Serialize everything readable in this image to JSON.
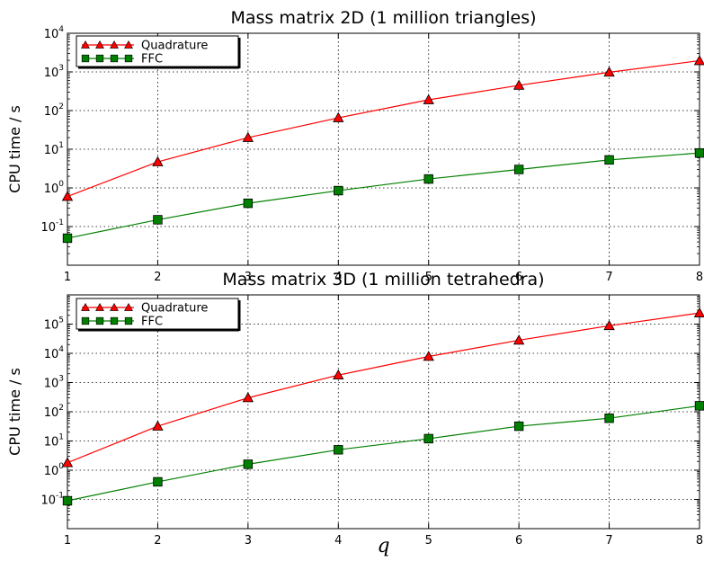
{
  "chart_data": [
    {
      "type": "line",
      "title": "Mass matrix 2D (1 million triangles)",
      "xlabel": "",
      "ylabel": "CPU time / s",
      "yscale": "log",
      "x": [
        1,
        2,
        3,
        4,
        5,
        6,
        7,
        8
      ],
      "xlim": [
        1,
        8
      ],
      "ylim": [
        0.01,
        10000
      ],
      "grid": true,
      "legend_position": "upper-left",
      "x_ticks": [
        "1",
        "2",
        "3",
        "4",
        "5",
        "6",
        "7",
        "8"
      ],
      "y_ticks": [
        {
          "value": 0.1,
          "base": "10",
          "exp": "-1"
        },
        {
          "value": 1,
          "base": "10",
          "exp": "0"
        },
        {
          "value": 10,
          "base": "10",
          "exp": "1"
        },
        {
          "value": 100,
          "base": "10",
          "exp": "2"
        },
        {
          "value": 1000,
          "base": "10",
          "exp": "3"
        },
        {
          "value": 10000,
          "base": "10",
          "exp": "4"
        }
      ],
      "series": [
        {
          "name": "Quadrature",
          "color": "#ff0000",
          "marker": "triangle",
          "values": [
            0.6,
            4.7,
            20,
            65,
            190,
            450,
            980,
            1950
          ]
        },
        {
          "name": "FFC",
          "color": "#008000",
          "marker": "square",
          "values": [
            0.05,
            0.15,
            0.4,
            0.85,
            1.7,
            3.0,
            5.3,
            8.0
          ]
        }
      ]
    },
    {
      "type": "line",
      "title": "Mass matrix 3D (1 million tetrahedra)",
      "xlabel": "q",
      "ylabel": "CPU time / s",
      "yscale": "log",
      "x": [
        1,
        2,
        3,
        4,
        5,
        6,
        7,
        8
      ],
      "xlim": [
        1,
        8
      ],
      "ylim": [
        0.01,
        1000000
      ],
      "grid": true,
      "legend_position": "upper-left",
      "x_ticks": [
        "1",
        "2",
        "3",
        "4",
        "5",
        "6",
        "7",
        "8"
      ],
      "y_ticks": [
        {
          "value": 0.1,
          "base": "10",
          "exp": "-1"
        },
        {
          "value": 1,
          "base": "10",
          "exp": "0"
        },
        {
          "value": 10,
          "base": "10",
          "exp": "1"
        },
        {
          "value": 100,
          "base": "10",
          "exp": "2"
        },
        {
          "value": 1000,
          "base": "10",
          "exp": "3"
        },
        {
          "value": 10000,
          "base": "10",
          "exp": "4"
        },
        {
          "value": 100000,
          "base": "10",
          "exp": "5"
        }
      ],
      "series": [
        {
          "name": "Quadrature",
          "color": "#ff0000",
          "marker": "triangle",
          "values": [
            1.8,
            32,
            300,
            1800,
            7800,
            28000,
            88000,
            240000
          ]
        },
        {
          "name": "FFC",
          "color": "#008000",
          "marker": "square",
          "values": [
            0.09,
            0.4,
            1.6,
            5,
            12,
            32,
            60,
            160
          ]
        }
      ]
    }
  ]
}
